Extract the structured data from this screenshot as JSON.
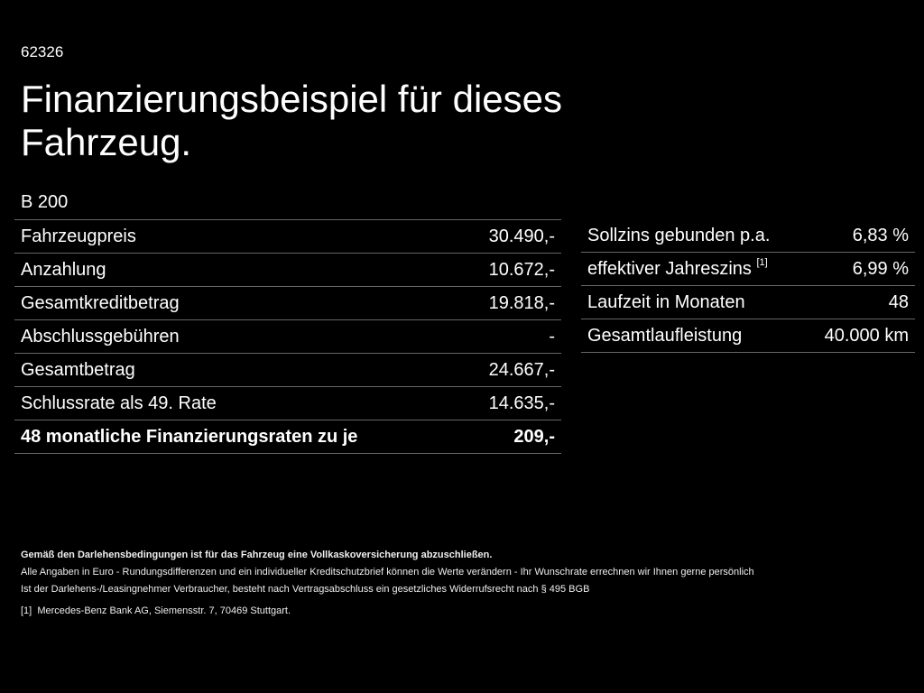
{
  "code": "62326",
  "title": "Finanzierungsbeispiel für dieses Fahrzeug.",
  "model": "B 200",
  "left_rows": [
    {
      "label": "Fahrzeugpreis",
      "value": "30.490,-"
    },
    {
      "label": "Anzahlung",
      "value": "10.672,-"
    },
    {
      "label": "Gesamtkreditbetrag",
      "value": "19.818,-"
    },
    {
      "label": "Abschlussgebühren",
      "value": "-"
    },
    {
      "label": "Gesamtbetrag",
      "value": "24.667,-"
    },
    {
      "label": "Schlussrate als 49. Rate",
      "value": "14.635,-"
    },
    {
      "label": "48 monatliche Finanzierungsraten zu je",
      "value": "209,-"
    }
  ],
  "right_rows": [
    {
      "label": "Sollzins gebunden p.a.",
      "value": "6,83 %"
    },
    {
      "label": "effektiver Jahreszins",
      "sup": "[1]",
      "value": "6,99 %"
    },
    {
      "label": "Laufzeit in Monaten",
      "value": "48"
    },
    {
      "label": "Gesamtlaufleistung",
      "value": "40.000 km"
    }
  ],
  "notes": {
    "bold": "Gemäß den Darlehensbedingungen ist für das Fahrzeug eine Vollkaskoversicherung abzuschließen.",
    "line1": "Alle Angaben in Euro - Rundungsdifferenzen und ein individueller Kreditschutzbrief können die Werte verändern - Ihr Wunschrate errechnen wir Ihnen gerne persönlich",
    "line2": "Ist der Darlehens-/Leasingnehmer Verbraucher, besteht nach Vertragsabschluss ein gesetzliches Widerrufsrecht nach § 495 BGB",
    "footnote_mark": "[1]",
    "footnote": "Mercedes-Benz Bank AG, Siemensstr. 7, 70469 Stuttgart."
  }
}
